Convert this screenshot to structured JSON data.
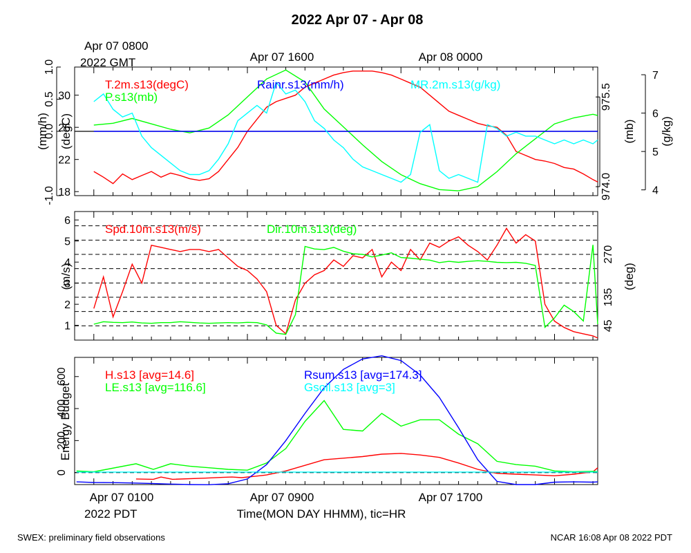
{
  "page": {
    "title": "2022 Apr 07 - Apr 08",
    "footer_left": "SWEX: preliminary field observations",
    "footer_right": "NCAR 16:08 Apr 08 2022 PDT"
  },
  "time_axis": {
    "top_date_lines": [
      "Apr 07 0800",
      "2022 GMT"
    ],
    "top_labels": [
      "Apr 07 1600",
      "Apr 08 0000"
    ],
    "bottom_labels": [
      "Apr 07 0100",
      "Apr 07 0900",
      "Apr 07 1700"
    ],
    "bottom_tz": "2022 PDT",
    "xlabel": "Time(MON DAY HHMM), tic=HR",
    "hours_start": 0,
    "hours_end": 27.25
  },
  "colors": {
    "red": "#ff0000",
    "green": "#00ff00",
    "blue": "#0000ff",
    "cyan": "#00ffff",
    "black": "#000000"
  },
  "chart_data": [
    {
      "type": "line",
      "panel": "met",
      "x_unit": "hours since Apr 07 0000 PDT",
      "legend": [
        "T.2m.s13(degC)",
        "P.s13(mb)",
        "Rainr.s13(mm/h)",
        "MR.2m.s13(g/kg)"
      ],
      "axes": [
        {
          "label": "(mm/h)",
          "side": "left",
          "range": [
            -1.0,
            1.0
          ],
          "ticks": [
            "-1.0",
            "0.0",
            "0.5",
            "1.0"
          ]
        },
        {
          "label": "(degC)",
          "side": "left",
          "range": [
            17.5,
            33.5
          ],
          "ticks": [
            "18",
            "22",
            "26",
            "30"
          ]
        },
        {
          "label": "(mb)",
          "side": "right",
          "range": [
            973.85,
            976.0
          ],
          "ticks": [
            "974.0",
            "975.5"
          ]
        },
        {
          "label": "(g/kg)",
          "side": "right",
          "range": [
            3.85,
            7.2
          ],
          "ticks": [
            "4",
            "5",
            "6",
            "7"
          ]
        }
      ],
      "series": [
        {
          "name": "T.2m.s13(degC)",
          "color": "red",
          "axis": 1,
          "x": [
            1,
            1.5,
            2,
            2.5,
            3,
            3.5,
            4,
            4.5,
            5,
            5.5,
            6,
            6.5,
            7,
            7.5,
            8,
            8.5,
            9,
            9.5,
            10,
            10.5,
            11,
            11.5,
            12,
            12.5,
            13,
            13.5,
            14,
            14.5,
            15,
            15.5,
            16,
            16.5,
            17,
            17.5,
            18,
            18.5,
            19,
            19.5,
            20,
            20.5,
            21,
            21.5,
            22,
            22.5,
            23,
            23.5,
            24,
            24.5,
            25,
            25.5,
            26,
            26.5,
            27,
            27.25
          ],
          "y": [
            20.5,
            19.8,
            19.0,
            20.2,
            19.5,
            20.0,
            20.5,
            19.8,
            20.3,
            20.0,
            19.6,
            19.4,
            19.6,
            20.5,
            22.0,
            23.5,
            25.5,
            27.0,
            28.5,
            29.2,
            29.6,
            30.0,
            31.0,
            31.5,
            32.0,
            32.5,
            32.8,
            33.0,
            33.0,
            33.0,
            32.8,
            32.5,
            32.0,
            31.5,
            31.0,
            30.0,
            29.0,
            28.0,
            27.5,
            27.0,
            26.5,
            26.2,
            26.0,
            25.0,
            23.0,
            22.5,
            22.0,
            21.8,
            21.5,
            21.0,
            20.8,
            20.2,
            19.5,
            19.2
          ]
        },
        {
          "name": "P.s13(mb)",
          "color": "green",
          "axis": 2,
          "x": [
            1,
            2,
            3,
            4,
            5,
            6,
            7,
            8,
            9,
            10,
            11,
            12,
            13,
            14,
            15,
            16,
            17,
            18,
            19,
            20,
            21,
            22,
            23,
            24,
            25,
            26,
            27,
            27.25
          ],
          "y": [
            975.03,
            975.06,
            975.14,
            975.05,
            974.96,
            974.9,
            974.98,
            975.2,
            975.5,
            975.8,
            975.95,
            975.75,
            975.3,
            975.0,
            974.7,
            974.42,
            974.2,
            974.05,
            973.95,
            973.93,
            974.0,
            974.25,
            974.55,
            974.8,
            975.05,
            975.15,
            975.21,
            975.19
          ]
        },
        {
          "name": "Rainr.s13(mm/h)",
          "color": "blue",
          "axis": 0,
          "x": [
            1,
            27.25
          ],
          "y": [
            0.0,
            0.0
          ]
        },
        {
          "name": "MR.2m.s13(g/kg)",
          "color": "cyan",
          "axis": 3,
          "x": [
            1,
            1.5,
            2,
            2.5,
            3,
            3.5,
            4,
            4.5,
            5,
            5.5,
            6,
            6.5,
            7,
            7.5,
            8,
            8.5,
            9,
            9.5,
            10,
            10.5,
            11,
            11.5,
            12,
            12.5,
            13,
            13.5,
            14,
            14.5,
            15,
            15.5,
            16,
            16.5,
            17,
            17.5,
            18,
            18.5,
            19,
            19.5,
            20,
            20.5,
            21,
            21.5,
            22,
            22.5,
            23,
            23.5,
            24,
            24.5,
            25,
            25.5,
            26,
            26.5,
            27,
            27.25
          ],
          "y": [
            6.3,
            6.5,
            6.1,
            5.9,
            6.0,
            5.4,
            5.1,
            4.9,
            4.7,
            4.5,
            4.4,
            4.4,
            4.5,
            4.8,
            5.2,
            5.8,
            6.0,
            6.2,
            6.0,
            6.8,
            6.5,
            6.6,
            6.3,
            5.8,
            5.6,
            5.3,
            5.1,
            4.8,
            4.6,
            4.5,
            4.4,
            4.3,
            4.2,
            4.4,
            5.5,
            5.7,
            4.5,
            4.3,
            4.4,
            4.3,
            4.2,
            5.7,
            5.6,
            5.4,
            5.5,
            5.4,
            5.4,
            5.3,
            5.2,
            5.3,
            5.2,
            5.3,
            5.2,
            5.3
          ]
        }
      ]
    },
    {
      "type": "line",
      "panel": "wind",
      "legend": [
        "Spd.10m.s13(m/s)",
        "Dir.10m.s13(deg)"
      ],
      "axes": [
        {
          "label": "(m/s)",
          "side": "left",
          "range": [
            0.3,
            6.4
          ],
          "ticks": [
            "1",
            "2",
            "3",
            "4",
            "5",
            "6"
          ]
        },
        {
          "label": "(deg)",
          "side": "right",
          "range": [
            0,
            405
          ],
          "ticks": [
            "45",
            "135",
            "270"
          ]
        }
      ],
      "grid_dashed_deg": [
        45,
        90,
        135,
        180,
        225,
        270,
        315,
        360
      ],
      "series": [
        {
          "name": "Spd.10m.s13(m/s)",
          "color": "red",
          "axis": 0,
          "x": [
            1,
            1.5,
            2,
            2.5,
            3,
            3.5,
            4,
            4.5,
            5,
            5.5,
            6,
            6.5,
            7,
            7.5,
            8,
            8.5,
            9,
            9.5,
            10,
            10.5,
            11,
            11.5,
            12,
            12.5,
            13,
            13.5,
            14,
            14.5,
            15,
            15.5,
            16,
            16.5,
            17,
            17.5,
            18,
            18.5,
            19,
            19.5,
            20,
            20.5,
            21,
            21.5,
            22,
            22.5,
            23,
            23.5,
            24,
            24.5,
            25,
            25.5,
            26,
            26.5,
            27,
            27.25
          ],
          "y": [
            1.8,
            3.3,
            1.4,
            2.6,
            3.9,
            3.0,
            4.8,
            4.7,
            4.6,
            4.5,
            4.6,
            4.6,
            4.5,
            4.6,
            4.2,
            3.8,
            3.6,
            3.2,
            2.6,
            1.0,
            0.6,
            2.2,
            3.0,
            3.4,
            3.6,
            4.1,
            3.8,
            4.3,
            4.2,
            4.6,
            3.3,
            4.0,
            3.6,
            4.6,
            4.1,
            4.9,
            4.7,
            5.0,
            5.2,
            4.8,
            4.5,
            4.1,
            4.8,
            5.6,
            4.9,
            5.3,
            5.0,
            2.0,
            1.2,
            0.9,
            0.7,
            0.6,
            0.5,
            0.4
          ]
        },
        {
          "name": "Dir.10m.s13(deg)",
          "color": "green",
          "axis": 1,
          "x": [
            1,
            1.5,
            2,
            2.5,
            3,
            3.5,
            4,
            4.5,
            5,
            5.5,
            6,
            6.5,
            7,
            7.5,
            8,
            8.5,
            9,
            9.5,
            10,
            10.5,
            11,
            11.5,
            12,
            12.5,
            13,
            13.5,
            14,
            14.5,
            15,
            15.5,
            16,
            16.5,
            17,
            17.5,
            18,
            18.5,
            19,
            19.5,
            20,
            20.5,
            21,
            21.5,
            22,
            22.5,
            23,
            23.5,
            24,
            24.5,
            25,
            25.5,
            26,
            26.5,
            27,
            27.25
          ],
          "y": [
            50,
            58,
            56,
            55,
            57,
            54,
            53,
            55,
            55,
            58,
            56,
            54,
            53,
            54,
            55,
            54,
            56,
            55,
            48,
            22,
            18,
            80,
            295,
            287,
            285,
            292,
            280,
            272,
            270,
            262,
            268,
            275,
            260,
            258,
            255,
            252,
            244,
            248,
            245,
            248,
            250,
            248,
            245,
            244,
            245,
            242,
            235,
            40,
            70,
            110,
            90,
            60,
            300,
            50
          ]
        }
      ]
    },
    {
      "type": "line",
      "panel": "energy",
      "axes": [
        {
          "label": "Energy Budget",
          "side": "left",
          "range": [
            -75,
            720
          ],
          "ticks": [
            "0",
            "200",
            "400",
            "600"
          ]
        }
      ],
      "series": [
        {
          "name": "H.s13 [avg=14.6]",
          "color": "red",
          "axis": 0,
          "x": [
            3.2,
            4.1,
            4.5,
            5.1,
            6.8,
            7.7,
            8.2,
            8.7,
            9.5,
            10,
            11,
            12,
            13,
            14,
            15,
            16,
            17,
            18,
            19,
            20,
            21,
            22,
            23,
            24,
            25,
            26,
            27,
            27.25
          ],
          "y": [
            -40,
            -42,
            -28,
            -42,
            -35,
            -30,
            -28,
            -32,
            -22,
            -15,
            10,
            45,
            80,
            90,
            100,
            115,
            120,
            110,
            95,
            60,
            20,
            -5,
            -10,
            -15,
            -20,
            -10,
            5,
            30
          ]
        },
        {
          "name": "LE.s13 [avg=116.6]",
          "color": "green",
          "axis": 0,
          "x": [
            0.1,
            1,
            3.2,
            4.1,
            5,
            6,
            7,
            8,
            9,
            10,
            11,
            12,
            13,
            14,
            15,
            16,
            17,
            18,
            19,
            20,
            21,
            22,
            23,
            24,
            25,
            26,
            27,
            27.25
          ],
          "y": [
            10,
            5,
            55,
            20,
            55,
            40,
            30,
            20,
            15,
            60,
            150,
            320,
            450,
            270,
            260,
            370,
            290,
            330,
            330,
            240,
            180,
            70,
            50,
            40,
            10,
            5,
            8,
            5
          ]
        },
        {
          "name": "Rsum.s13 [avg=174.3]",
          "color": "blue",
          "axis": 0,
          "x": [
            0.1,
            1,
            2,
            3,
            4,
            5,
            6,
            7,
            8,
            9,
            10,
            11,
            12,
            13,
            14,
            15,
            16,
            17,
            18,
            19,
            20,
            21,
            22,
            23,
            24,
            25,
            26,
            27,
            27.25
          ],
          "y": [
            -58,
            -62,
            -63,
            -65,
            -68,
            -72,
            -75,
            -76,
            -70,
            -40,
            50,
            200,
            370,
            530,
            645,
            710,
            730,
            700,
            610,
            470,
            280,
            80,
            -55,
            -75,
            -75,
            -60,
            -58,
            -60,
            -58
          ]
        },
        {
          "name": "Gsoil.s13 [avg=3]",
          "color": "cyan",
          "axis": 0,
          "x": [
            0.1,
            27.25
          ],
          "y": [
            3,
            3
          ]
        }
      ]
    }
  ]
}
